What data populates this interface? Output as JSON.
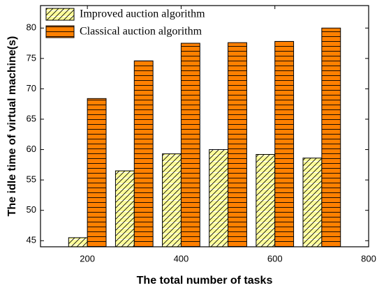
{
  "chart_data": {
    "type": "bar",
    "x_label": "The total number of tasks",
    "y_label": "The idle time of virtual machine(s)",
    "x": [
      200,
      300,
      400,
      500,
      600,
      700
    ],
    "series": [
      {
        "name": "Improved auction algorithm",
        "color": "#ffff99",
        "hatch": "diagonal",
        "values": [
          45.5,
          56.5,
          59.3,
          60.0,
          59.2,
          58.6
        ]
      },
      {
        "name": "Classical auction algorithm",
        "color": "#ff8000",
        "hatch": "horizontal",
        "values": [
          68.4,
          74.6,
          77.5,
          77.6,
          77.8,
          80.0
        ]
      }
    ],
    "xlim": [
      100,
      800
    ],
    "xticks": [
      200,
      400,
      600,
      800
    ],
    "ylim": [
      44,
      83.7
    ],
    "yticks": [
      45,
      50,
      55,
      60,
      65,
      70,
      75,
      80
    ],
    "bar_width": 40,
    "legend": "upper left"
  }
}
